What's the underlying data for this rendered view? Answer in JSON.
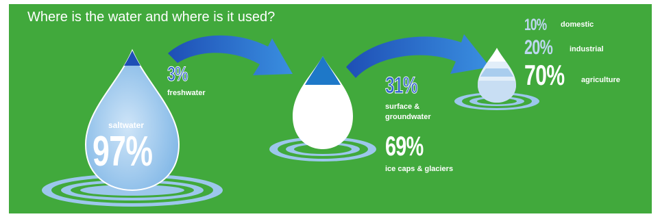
{
  "title": "Where is the water and where is it used?",
  "colors": {
    "background": "#41a93c",
    "ocean_drop": "#8fc0ea",
    "freshwater_drop": "#ffffff",
    "accent_blue": "#3366cc",
    "light_blue": "#bcd7ef"
  },
  "icons": [
    "saltwater-drop-icon",
    "freshwater-drop-icon",
    "usage-drop-icon",
    "ripple-icon",
    "arrow-icon"
  ],
  "saltwater": {
    "percent": "97%",
    "label": "saltwater"
  },
  "freshwater": {
    "percent": "3%",
    "label": "freshwater"
  },
  "surface": {
    "percent": "31%",
    "label_line1": "surface &",
    "label_line2": "groundwater"
  },
  "icecaps": {
    "percent": "69%",
    "label": "ice caps & glaciers"
  },
  "uses": [
    {
      "percent": "10%",
      "label": "domestic"
    },
    {
      "percent": "20%",
      "label": "industrial"
    },
    {
      "percent": "70%",
      "label": "agriculture"
    }
  ]
}
